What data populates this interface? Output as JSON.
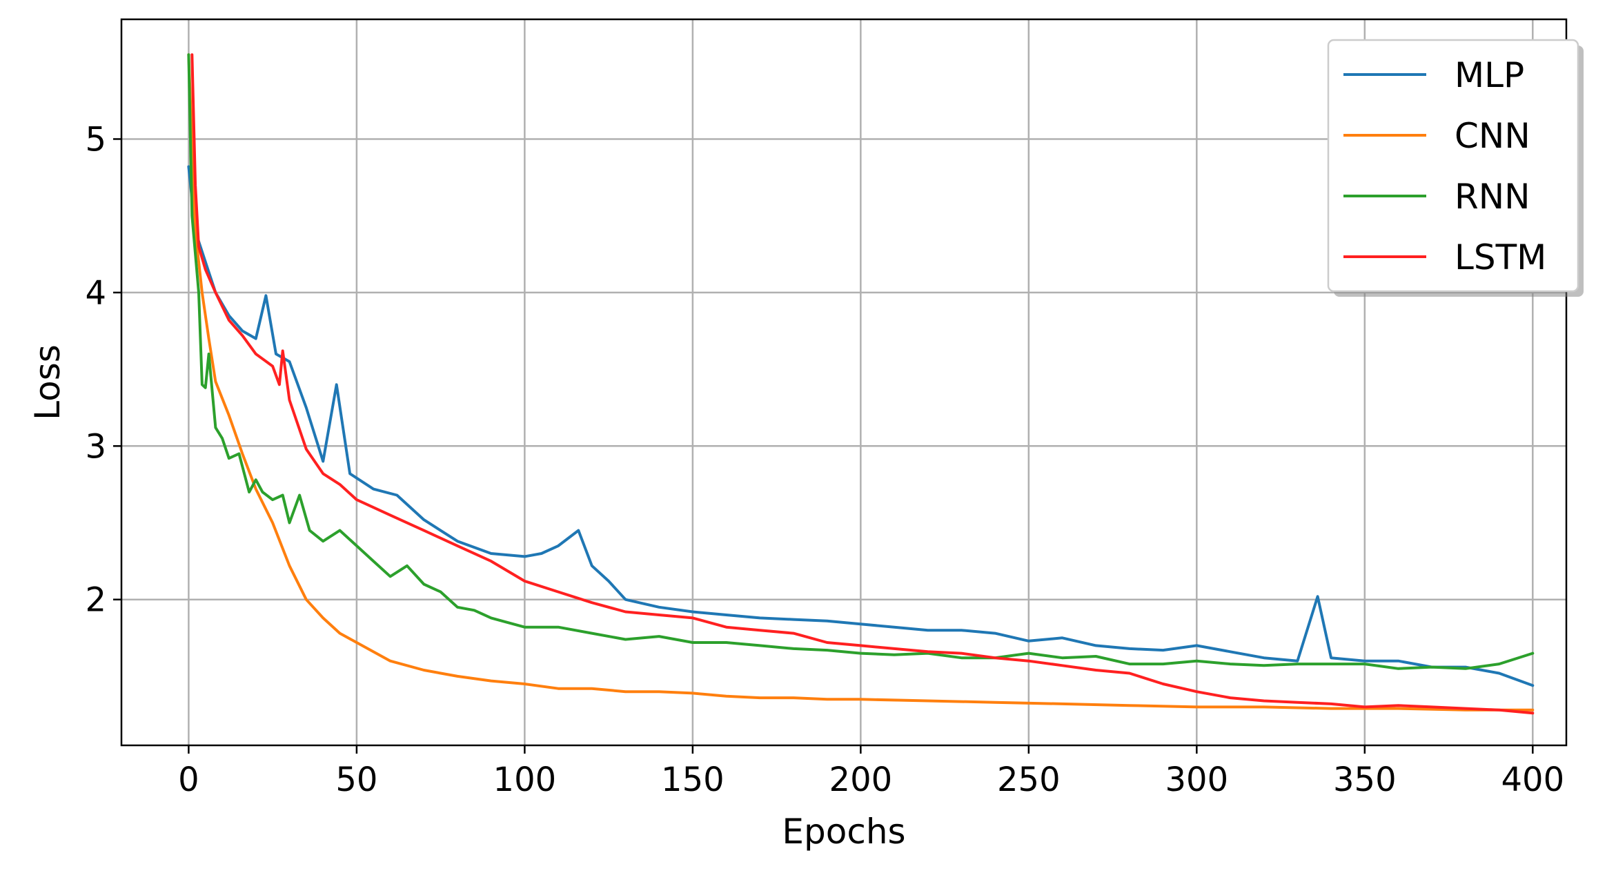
{
  "chart_data": {
    "type": "line",
    "title": "",
    "xlabel": "Epochs",
    "ylabel": "Loss",
    "xlim": [
      -20,
      410
    ],
    "ylim": [
      1.05,
      5.78
    ],
    "xticks": [
      0,
      50,
      100,
      150,
      200,
      250,
      300,
      350,
      400
    ],
    "yticks": [
      2,
      3,
      4,
      5
    ],
    "grid": true,
    "legend_position": "top-right",
    "series": [
      {
        "name": "MLP",
        "color": "#1f77b4",
        "x": [
          0,
          2,
          5,
          8,
          12,
          16,
          20,
          23,
          26,
          30,
          35,
          40,
          44,
          48,
          55,
          62,
          70,
          80,
          90,
          100,
          105,
          110,
          116,
          120,
          125,
          130,
          140,
          150,
          160,
          170,
          180,
          190,
          200,
          210,
          220,
          230,
          240,
          250,
          260,
          270,
          280,
          290,
          300,
          310,
          320,
          330,
          336,
          340,
          350,
          360,
          370,
          380,
          390,
          400
        ],
        "y": [
          4.82,
          4.4,
          4.2,
          4.0,
          3.85,
          3.75,
          3.7,
          3.98,
          3.6,
          3.55,
          3.25,
          2.9,
          3.4,
          2.82,
          2.72,
          2.68,
          2.52,
          2.38,
          2.3,
          2.28,
          2.3,
          2.35,
          2.45,
          2.22,
          2.12,
          2.0,
          1.95,
          1.92,
          1.9,
          1.88,
          1.87,
          1.86,
          1.84,
          1.82,
          1.8,
          1.8,
          1.78,
          1.73,
          1.75,
          1.7,
          1.68,
          1.67,
          1.7,
          1.66,
          1.62,
          1.6,
          2.02,
          1.62,
          1.6,
          1.6,
          1.56,
          1.56,
          1.52,
          1.44
        ]
      },
      {
        "name": "CNN",
        "color": "#ff7f0e",
        "x": [
          0,
          2,
          4,
          6,
          8,
          12,
          16,
          20,
          25,
          30,
          35,
          40,
          45,
          50,
          60,
          70,
          80,
          90,
          100,
          110,
          120,
          130,
          140,
          150,
          160,
          170,
          180,
          190,
          200,
          220,
          240,
          260,
          280,
          300,
          320,
          340,
          360,
          380,
          400
        ],
        "y": [
          5.55,
          4.4,
          4.0,
          3.7,
          3.42,
          3.2,
          2.95,
          2.72,
          2.5,
          2.22,
          2.0,
          1.88,
          1.78,
          1.72,
          1.6,
          1.54,
          1.5,
          1.47,
          1.45,
          1.42,
          1.42,
          1.4,
          1.4,
          1.39,
          1.37,
          1.36,
          1.36,
          1.35,
          1.35,
          1.34,
          1.33,
          1.32,
          1.31,
          1.3,
          1.3,
          1.29,
          1.29,
          1.28,
          1.28
        ]
      },
      {
        "name": "RNN",
        "color": "#2ca02c",
        "x": [
          0,
          1,
          3,
          4,
          5,
          6,
          8,
          10,
          12,
          15,
          18,
          20,
          22,
          25,
          28,
          30,
          33,
          36,
          40,
          45,
          50,
          55,
          60,
          65,
          70,
          75,
          80,
          85,
          90,
          95,
          100,
          110,
          120,
          130,
          140,
          150,
          160,
          170,
          180,
          190,
          200,
          210,
          220,
          230,
          240,
          250,
          260,
          270,
          280,
          290,
          300,
          310,
          320,
          330,
          340,
          350,
          360,
          370,
          380,
          390,
          400
        ],
        "y": [
          5.55,
          4.5,
          4.0,
          3.4,
          3.38,
          3.6,
          3.12,
          3.05,
          2.92,
          2.95,
          2.7,
          2.78,
          2.7,
          2.65,
          2.68,
          2.5,
          2.68,
          2.45,
          2.38,
          2.45,
          2.35,
          2.25,
          2.15,
          2.22,
          2.1,
          2.05,
          1.95,
          1.93,
          1.88,
          1.85,
          1.82,
          1.82,
          1.78,
          1.74,
          1.76,
          1.72,
          1.72,
          1.7,
          1.68,
          1.67,
          1.65,
          1.64,
          1.65,
          1.62,
          1.62,
          1.65,
          1.62,
          1.63,
          1.58,
          1.58,
          1.6,
          1.58,
          1.57,
          1.58,
          1.58,
          1.58,
          1.55,
          1.56,
          1.55,
          1.58,
          1.65
        ]
      },
      {
        "name": "LSTM",
        "color": "#ff2020",
        "x": [
          1,
          2,
          3,
          5,
          8,
          12,
          16,
          20,
          25,
          27,
          28,
          30,
          35,
          40,
          45,
          50,
          60,
          70,
          80,
          90,
          100,
          110,
          120,
          130,
          140,
          150,
          160,
          170,
          180,
          190,
          200,
          210,
          220,
          230,
          240,
          250,
          260,
          270,
          280,
          290,
          300,
          310,
          320,
          330,
          340,
          350,
          360,
          370,
          380,
          390,
          400
        ],
        "y": [
          5.55,
          4.7,
          4.3,
          4.15,
          4.0,
          3.82,
          3.72,
          3.6,
          3.52,
          3.4,
          3.62,
          3.3,
          2.98,
          2.82,
          2.75,
          2.65,
          2.55,
          2.45,
          2.35,
          2.25,
          2.12,
          2.05,
          1.98,
          1.92,
          1.9,
          1.88,
          1.82,
          1.8,
          1.78,
          1.72,
          1.7,
          1.68,
          1.66,
          1.65,
          1.62,
          1.6,
          1.57,
          1.54,
          1.52,
          1.45,
          1.4,
          1.36,
          1.34,
          1.33,
          1.32,
          1.3,
          1.31,
          1.3,
          1.29,
          1.28,
          1.26
        ]
      }
    ]
  }
}
